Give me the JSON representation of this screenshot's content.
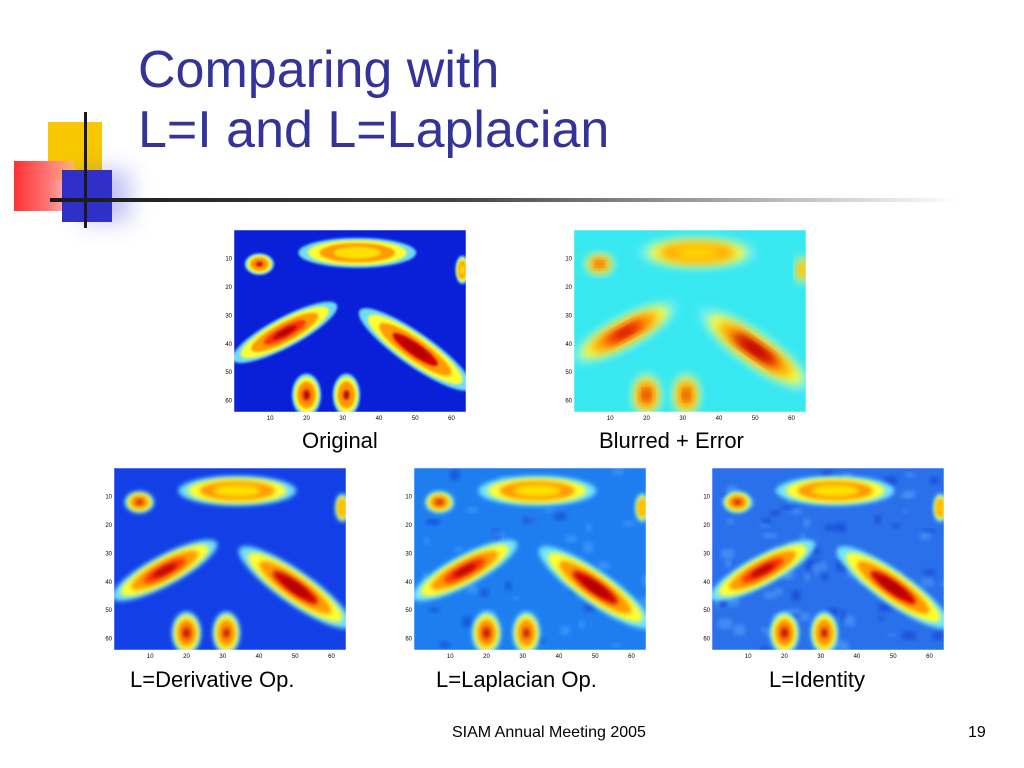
{
  "title": {
    "line1": "Comparing with",
    "line2": "L=I and L=Laplacian"
  },
  "figures": [
    {
      "id": "original",
      "caption": "Original",
      "style": "clean"
    },
    {
      "id": "blurred",
      "caption": "Blurred + Error",
      "style": "blurred"
    },
    {
      "id": "derivative",
      "caption": "L=Derivative Op.",
      "style": "derivative"
    },
    {
      "id": "laplacian",
      "caption": "L=Laplacian Op.",
      "style": "laplacian"
    },
    {
      "id": "identity",
      "caption": "L=Identity",
      "style": "identity"
    }
  ],
  "axis_ticks": {
    "x": [
      "10",
      "20",
      "30",
      "40",
      "50",
      "60"
    ],
    "y": [
      "10",
      "20",
      "30",
      "40",
      "50",
      "60"
    ]
  },
  "footer": {
    "text": "SIAM Annual Meeting 2005",
    "page_number": "19"
  },
  "colors": {
    "title": "#333399",
    "accent_yellow": "#f7c800",
    "accent_red": "#ff3030",
    "accent_blue": "#3030c8"
  }
}
